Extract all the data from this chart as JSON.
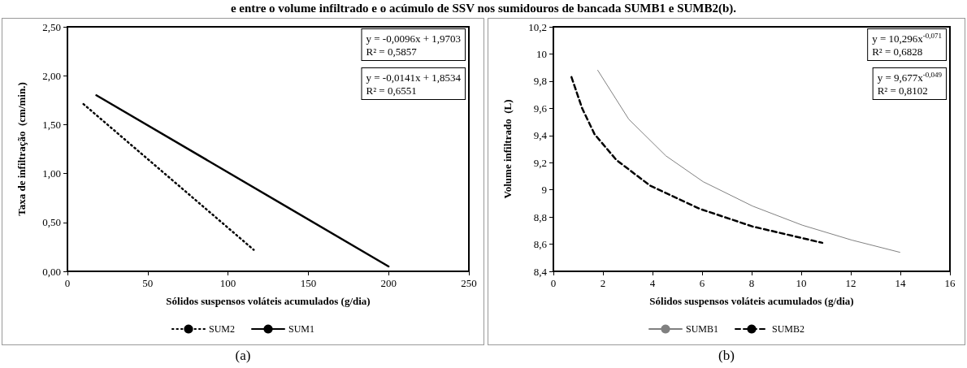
{
  "chart_data": [
    {
      "type": "line",
      "title": "e entre o volume infiltrado e o acúmulo de SSV nos sumidouros de bancada SUMB1 e SUMB2(b).",
      "xlabel": "Sólidos suspensos voláteis acumulados (g/dia)",
      "ylabel": "Taxa de infiltração  (cm/min.)",
      "xlim": [
        0,
        250
      ],
      "xticks": [
        0,
        50,
        100,
        150,
        200,
        250
      ],
      "ylim": [
        0,
        2.5
      ],
      "yticks": [
        {
          "value": 0,
          "label": "0,00"
        },
        {
          "value": 0.5,
          "label": "0,50"
        },
        {
          "value": 1,
          "label": "1,00"
        },
        {
          "value": 1.5,
          "label": "1,50"
        },
        {
          "value": 2,
          "label": "2,00"
        },
        {
          "value": 2.5,
          "label": "2,50"
        }
      ],
      "series": [
        {
          "name": "SUM2",
          "color": "#000000",
          "line_style": "dotted",
          "x": [
            10,
            116
          ],
          "values": [
            1.71,
            0.22
          ]
        },
        {
          "name": "SUM1",
          "color": "#000000",
          "line_style": "solid",
          "x": [
            18,
            200
          ],
          "values": [
            1.8,
            0.05
          ]
        }
      ],
      "annotations": [
        "y = -0,0096x + 1,9703\nR² = 0,5857",
        "y = -0,0141x + 1,8534\nR² = 0,6551",
        "(a)"
      ],
      "legend": "bottom",
      "grid": false,
      "marker": "none"
    },
    {
      "type": "line",
      "xlabel": "Sólidos suspensos voláteis acumulados (g/dia)",
      "ylabel": "Volume infiltrado  (L)",
      "xlim": [
        0,
        16
      ],
      "xticks": [
        0,
        2,
        4,
        6,
        8,
        10,
        12,
        14,
        16
      ],
      "ylim": [
        8.4,
        10.2
      ],
      "yticks": [
        {
          "value": 8.4,
          "label": "8,4"
        },
        {
          "value": 8.6,
          "label": "8,6"
        },
        {
          "value": 8.8,
          "label": "8,8"
        },
        9,
        {
          "value": 9.2,
          "label": "9,2"
        },
        {
          "value": 9.4,
          "label": "9,4"
        },
        {
          "value": 9.6,
          "label": "9,6"
        },
        {
          "value": 9.8,
          "label": "9,8"
        },
        10,
        {
          "value": 10.2,
          "label": "10,2"
        }
      ],
      "series": [
        {
          "name": "SUMB1",
          "color": "#808080",
          "line_style": "solid",
          "x": [
            1.79,
            3.04,
            4.54,
            6.04,
            8.04,
            10.04,
            12.04,
            13.98
          ],
          "values": [
            9.88,
            9.52,
            9.25,
            9.06,
            8.88,
            8.74,
            8.63,
            8.54
          ]
        },
        {
          "name": "SUMB2",
          "color": "#000000",
          "line_style": "dashed",
          "x": [
            0.73,
            1.16,
            1.66,
            2.54,
            3.91,
            5.91,
            8.04,
            10.85
          ],
          "values": [
            9.83,
            9.6,
            9.41,
            9.22,
            9.03,
            8.86,
            8.73,
            8.61
          ]
        }
      ],
      "annotations": [
        "y = 10,296x$^{-0,071}$\nR² = 0,6828",
        "y = 9,677x$^{-0,049}$\nR² = 0,8102",
        "(b)"
      ],
      "legend": "bottom",
      "grid": false,
      "marker": "none"
    }
  ]
}
